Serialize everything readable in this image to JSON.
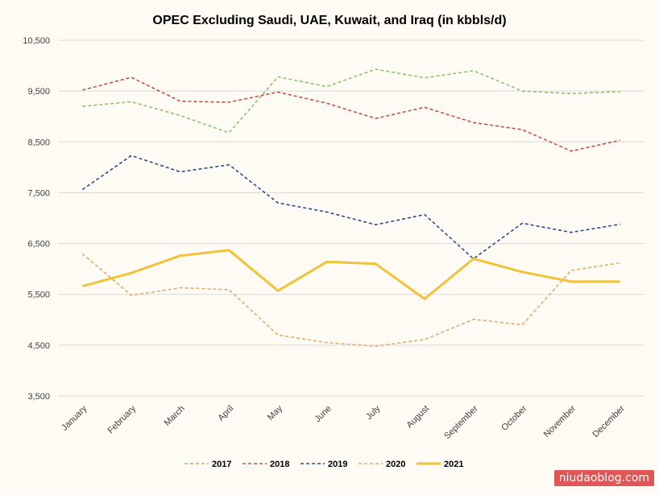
{
  "chart_data": {
    "type": "line",
    "title": "OPEC Excluding Saudi, UAE, Kuwait, and Iraq (in kbbls/d)",
    "xlabel": "",
    "ylabel": "",
    "categories": [
      "January",
      "February",
      "March",
      "April",
      "May",
      "June",
      "July",
      "August",
      "September",
      "October",
      "November",
      "December"
    ],
    "ylim": [
      3500,
      10500
    ],
    "yticks": [
      3500,
      4500,
      5500,
      6500,
      7500,
      8500,
      9500,
      10500
    ],
    "ytick_labels": [
      "3,500",
      "4,500",
      "5,500",
      "6,500",
      "7,500",
      "8,500",
      "9,500",
      "10,500"
    ],
    "grid": "horizontal",
    "legend_position": "bottom",
    "series": [
      {
        "name": "2017",
        "color": "#8fc26a",
        "dash": "dashed",
        "values": [
          9200,
          9290,
          9020,
          8680,
          9780,
          9590,
          9930,
          9760,
          9900,
          9500,
          9450,
          9490
        ]
      },
      {
        "name": "2018",
        "color": "#c0504d",
        "dash": "dashed",
        "values": [
          9520,
          9770,
          9300,
          9280,
          9480,
          9260,
          8960,
          9180,
          8880,
          8740,
          8320,
          8530
        ]
      },
      {
        "name": "2019",
        "color": "#2f4b8c",
        "dash": "dashed",
        "values": [
          7560,
          8230,
          7910,
          8050,
          7300,
          7120,
          6870,
          7070,
          6200,
          6900,
          6720,
          6880
        ]
      },
      {
        "name": "2020",
        "color": "#e6a96b",
        "dash": "dashed",
        "values": [
          6300,
          5480,
          5630,
          5590,
          4700,
          4550,
          4480,
          4610,
          5010,
          4900,
          5970,
          6120
        ]
      },
      {
        "name": "2021",
        "color": "#f2c23a",
        "dash": "solid",
        "values": [
          5660,
          5920,
          6260,
          6370,
          5570,
          6140,
          6100,
          5410,
          6200,
          5940,
          5750,
          5750
        ]
      }
    ]
  },
  "watermark": {
    "text": "niudaoblog.com"
  }
}
